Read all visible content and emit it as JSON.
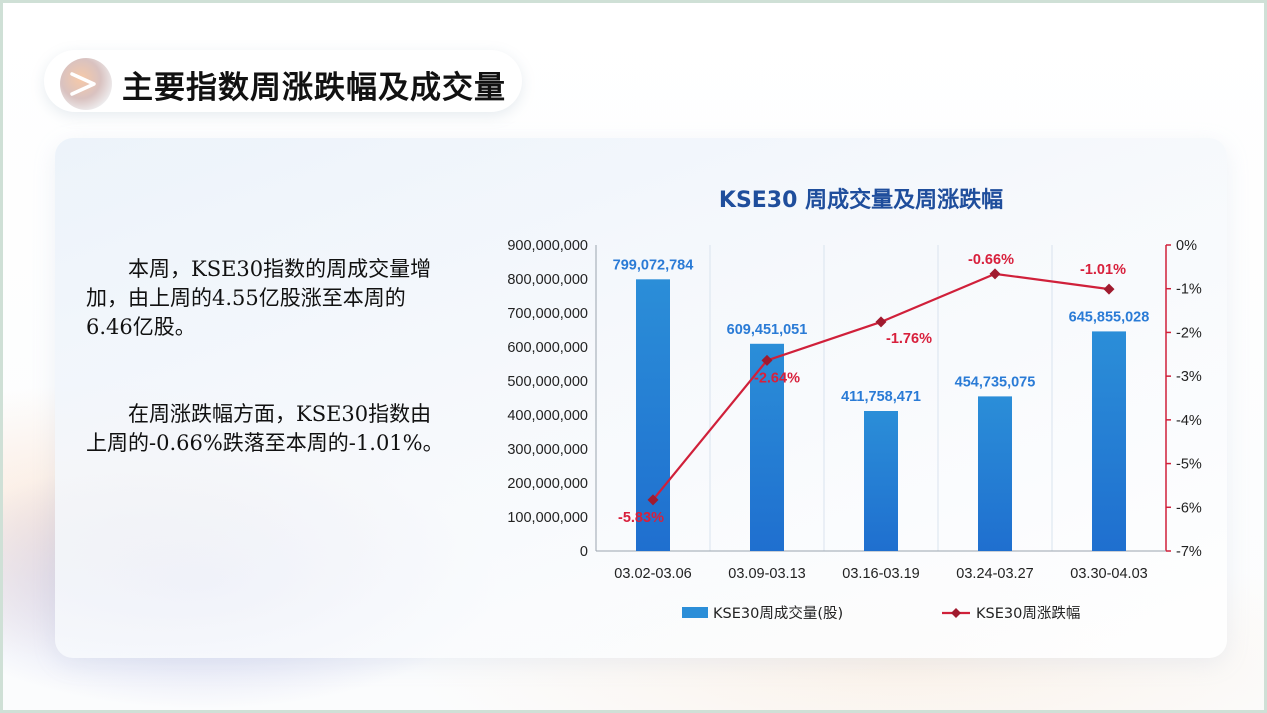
{
  "page": {
    "title": "主要指数周涨跌幅及成交量",
    "paragraphs": [
      "本周，KSE30指数的周成交量增加，由上周的4.55亿股涨至本周的6.46亿股。",
      "在周涨跌幅方面，KSE30指数由上周的-0.66%跌落至本周的-1.01%。"
    ]
  },
  "colors": {
    "bar": "#2b8ed8",
    "bar_dark": "#1f6fcf",
    "bar_label": "#2a7bd6",
    "line": "#d0203a",
    "marker": "#a01a2e",
    "line_label": "#d8203c",
    "title": "#1f4e9c",
    "right_axis": "#d0203a"
  },
  "chart_data": {
    "type": "bar",
    "title": "KSE30 周成交量及周涨跌幅",
    "categories": [
      "03.02-03.06",
      "03.09-03.13",
      "03.16-03.19",
      "03.24-03.27",
      "03.30-04.03"
    ],
    "series": [
      {
        "name": "KSE30周成交量(股)",
        "type": "bar",
        "axis": "left",
        "values": [
          799072784,
          609451051,
          411758471,
          454735075,
          645855028
        ],
        "labels": [
          "799,072,784",
          "609,451,051",
          "411,758,471",
          "454,735,075",
          "645,855,028"
        ]
      },
      {
        "name": "KSE30周涨跌幅",
        "type": "line",
        "axis": "right",
        "values": [
          -5.83,
          -2.64,
          -1.76,
          -0.66,
          -1.01
        ],
        "labels": [
          "-5.83%",
          "-2.64%",
          "-1.76%",
          "-0.66%",
          "-1.01%"
        ]
      }
    ],
    "left_axis": {
      "min": 0,
      "max": 900000000,
      "ticks": [
        "0",
        "100,000,000",
        "200,000,000",
        "300,000,000",
        "400,000,000",
        "500,000,000",
        "600,000,000",
        "700,000,000",
        "800,000,000",
        "900,000,000"
      ]
    },
    "right_axis": {
      "min": -7,
      "max": 0,
      "ticks": [
        "-7%",
        "-6%",
        "-5%",
        "-4%",
        "-3%",
        "-2%",
        "-1%",
        "0%"
      ]
    },
    "grid": "vertical",
    "legend": "bottom"
  }
}
